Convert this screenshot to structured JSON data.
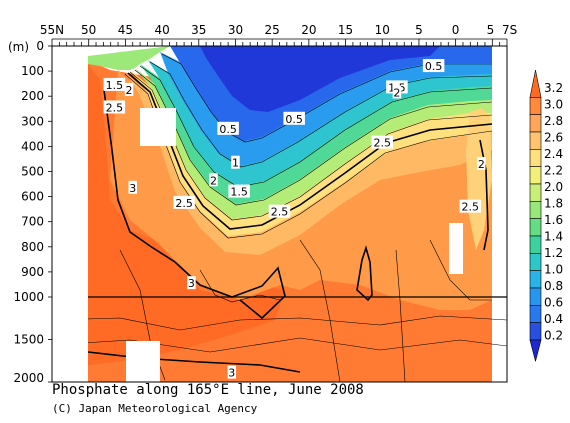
{
  "chart_data": {
    "type": "heatmap",
    "title": "Phosphate along 165°E line, June 2008",
    "credit": "(C) Japan Meteorological Agency",
    "x_axis": {
      "ticks": [
        "55N",
        "50",
        "45",
        "40",
        "35",
        "30",
        "25",
        "20",
        "15",
        "10",
        "5",
        "0",
        "5",
        "7S"
      ],
      "range": [
        55,
        -7
      ]
    },
    "y_axis": {
      "unit": "(m)",
      "ticks_upper": [
        "0",
        "100",
        "200",
        "300",
        "400",
        "500",
        "600",
        "700",
        "800",
        "900",
        "1000"
      ],
      "ticks_lower": [
        "1500",
        "2000"
      ],
      "range": [
        0,
        2000
      ],
      "break_at": 1000
    },
    "colorbar": {
      "ticks": [
        "3.2",
        "3.0",
        "2.8",
        "2.6",
        "2.4",
        "2.2",
        "2.0",
        "1.8",
        "1.6",
        "1.4",
        "1.2",
        "1.0",
        "0.8",
        "0.6",
        "0.4",
        "0.2"
      ],
      "colors": [
        "#ff6a1e",
        "#ff8a3c",
        "#ffa65a",
        "#ffc26e",
        "#ffdf7e",
        "#f2f078",
        "#c8ef78",
        "#96e878",
        "#64dc84",
        "#3cd2a0",
        "#2cc8c8",
        "#28b4e6",
        "#2896f0",
        "#2878f0",
        "#2850e0",
        "#1e28d2"
      ]
    },
    "contour_labels": [
      {
        "text": "0.5",
        "lat": 3,
        "depth": 80
      },
      {
        "text": "0.5",
        "lat": 22,
        "depth": 290
      },
      {
        "text": "0.5",
        "lat": 31,
        "depth": 330
      },
      {
        "text": "1.5",
        "lat": 46.5,
        "depth": 155
      },
      {
        "text": "2",
        "lat": 44.5,
        "depth": 175
      },
      {
        "text": "2.5",
        "lat": 46.5,
        "depth": 245
      },
      {
        "text": "1",
        "lat": 30,
        "depth": 465
      },
      {
        "text": "2",
        "lat": 33,
        "depth": 535
      },
      {
        "text": "1.5",
        "lat": 29.5,
        "depth": 580
      },
      {
        "text": "2.5",
        "lat": 37,
        "depth": 625
      },
      {
        "text": "2.5",
        "lat": 24,
        "depth": 660
      },
      {
        "text": "3",
        "lat": 44,
        "depth": 565
      },
      {
        "text": "3",
        "lat": 36,
        "depth": 945
      },
      {
        "text": "3",
        "lat": 30.5,
        "depth": 1890
      },
      {
        "text": "1.5",
        "lat": 8,
        "depth": 165
      },
      {
        "text": "2",
        "lat": 8,
        "depth": 185
      },
      {
        "text": "2.5",
        "lat": 10,
        "depth": 385
      },
      {
        "text": "2",
        "lat": -3.5,
        "depth": 470
      },
      {
        "text": "2.5",
        "lat": -2,
        "depth": 640
      }
    ]
  }
}
